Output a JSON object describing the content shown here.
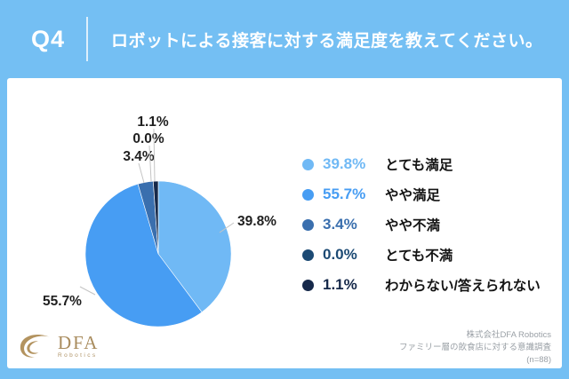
{
  "header": {
    "question_number": "Q4",
    "question_text": "ロボットによる接客に対する満足度を教えてください。"
  },
  "chart_data": {
    "type": "pie",
    "title": "",
    "categories": [
      "とても満足",
      "やや満足",
      "やや不満",
      "とても不満",
      "わからない/答えられない"
    ],
    "values": [
      39.8,
      55.7,
      3.4,
      0.0,
      1.1
    ],
    "data_labels": [
      "39.8%",
      "55.7%",
      "3.4%",
      "0.0%",
      "1.1%"
    ],
    "colors": [
      "#70b9f5",
      "#479df3",
      "#3a6fae",
      "#1c4a74",
      "#16294a"
    ],
    "start_angle_deg": 0,
    "direction": "clockwise",
    "legend_position": "right",
    "leader_line_color": "#c4c4c4"
  },
  "footer": {
    "logo_text": "DFA",
    "logo_subtext": "Robotics",
    "source_line1": "株式会社DFA Robotics",
    "source_line2": "ファミリー層の飲食店に対する意識調査",
    "source_line3": "(n=88)"
  },
  "colors": {
    "background": "#74bff3",
    "card": "#ffffff",
    "header_text": "#ffffff",
    "label_text": "#1f1f1f",
    "footer_text": "#9aa0a6",
    "logo_gold": "#ab8d5c"
  }
}
